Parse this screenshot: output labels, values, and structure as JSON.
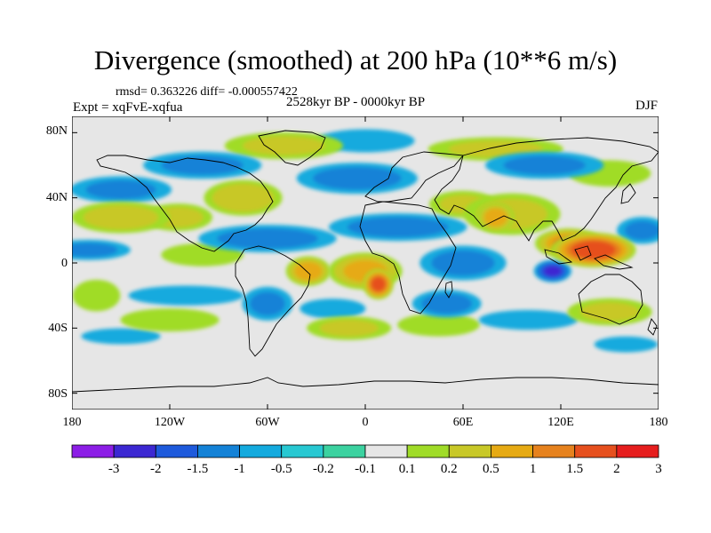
{
  "figure": {
    "title": "Divergence (smoothed) at 200 hPa (10**6 m/s)",
    "rmsd_text": "rmsd= 0.363226 diff= -0.000557422",
    "experiment": "Expt = xqFvE-xqfua",
    "period": "2528kyr BP - 0000kyr BP",
    "season": "DJF"
  },
  "map": {
    "lat_ticks": [
      "80N",
      "40N",
      "0",
      "40S",
      "80S"
    ],
    "lon_ticks": [
      "180",
      "120W",
      "60W",
      "0",
      "60E",
      "120E",
      "180"
    ],
    "background_color": "#e6e6e6"
  },
  "colorbar": {
    "labels": [
      "-3",
      "-2",
      "-1.5",
      "-1",
      "-0.5",
      "-0.2",
      "-0.1",
      "0.1",
      "0.2",
      "0.5",
      "1",
      "1.5",
      "2",
      "3"
    ],
    "colors": [
      "#8c1ee6",
      "#3c28d2",
      "#1e5adc",
      "#1482d7",
      "#14aade",
      "#28c8d2",
      "#3cd2a0",
      "#e6e6e6",
      "#a0dc28",
      "#c8c828",
      "#e6aa14",
      "#e6821e",
      "#e6501e",
      "#e61e1e"
    ]
  },
  "chart_data": {
    "type": "heatmap",
    "title": "Divergence (smoothed) at 200 hPa (10**6 m/s)",
    "units": "10**6 m/s",
    "projection": "cylindrical equidistant",
    "x_range": [
      -180,
      180
    ],
    "y_range": [
      -90,
      90
    ],
    "levels": [
      -3,
      -2,
      -1.5,
      -1,
      -0.5,
      -0.2,
      -0.1,
      0.1,
      0.2,
      0.5,
      1,
      1.5,
      2,
      3
    ],
    "features": [
      {
        "lon": 140,
        "lat": 8,
        "value": 2.5,
        "rx": 22,
        "ry": 9
      },
      {
        "lon": 125,
        "lat": 12,
        "value": 1.6,
        "rx": 18,
        "ry": 8
      },
      {
        "lon": 8,
        "lat": -13,
        "value": 2.2,
        "rx": 8,
        "ry": 8
      },
      {
        "lon": 0,
        "lat": -5,
        "value": 1.2,
        "rx": 20,
        "ry": 10
      },
      {
        "lon": -35,
        "lat": -5,
        "value": 1.3,
        "rx": 12,
        "ry": 8
      },
      {
        "lon": 80,
        "lat": 28,
        "value": 1.3,
        "rx": 10,
        "ry": 8
      },
      {
        "lon": 90,
        "lat": 30,
        "value": 0.6,
        "rx": 28,
        "ry": 12
      },
      {
        "lon": 60,
        "lat": 36,
        "value": 0.5,
        "rx": 20,
        "ry": 8
      },
      {
        "lon": -150,
        "lat": 28,
        "value": 0.7,
        "rx": 28,
        "ry": 9
      },
      {
        "lon": -115,
        "lat": 28,
        "value": 0.6,
        "rx": 20,
        "ry": 8
      },
      {
        "lon": -75,
        "lat": 40,
        "value": 0.8,
        "rx": 22,
        "ry": 10
      },
      {
        "lon": -50,
        "lat": 72,
        "value": 0.5,
        "rx": 35,
        "ry": 8
      },
      {
        "lon": 80,
        "lat": 70,
        "value": 0.5,
        "rx": 40,
        "ry": 7
      },
      {
        "lon": 150,
        "lat": 55,
        "value": 0.4,
        "rx": 25,
        "ry": 8
      },
      {
        "lon": -100,
        "lat": 5,
        "value": 0.4,
        "rx": 25,
        "ry": 7
      },
      {
        "lon": -10,
        "lat": -40,
        "value": 0.5,
        "rx": 25,
        "ry": 7
      },
      {
        "lon": 45,
        "lat": -38,
        "value": 0.4,
        "rx": 25,
        "ry": 7
      },
      {
        "lon": -120,
        "lat": -35,
        "value": 0.4,
        "rx": 30,
        "ry": 7
      },
      {
        "lon": 150,
        "lat": -30,
        "value": 0.5,
        "rx": 25,
        "ry": 8
      },
      {
        "lon": -165,
        "lat": -20,
        "value": 0.3,
        "rx": 15,
        "ry": 10
      },
      {
        "lon": 115,
        "lat": -5,
        "value": -1.6,
        "rx": 10,
        "ry": 6
      },
      {
        "lon": -60,
        "lat": 15,
        "value": -0.6,
        "rx": 40,
        "ry": 8
      },
      {
        "lon": 20,
        "lat": 22,
        "value": -0.6,
        "rx": 40,
        "ry": 8
      },
      {
        "lon": -170,
        "lat": 8,
        "value": -0.5,
        "rx": 25,
        "ry": 6
      },
      {
        "lon": 60,
        "lat": 0,
        "value": -0.6,
        "rx": 25,
        "ry": 10
      },
      {
        "lon": -5,
        "lat": 52,
        "value": -0.6,
        "rx": 35,
        "ry": 9
      },
      {
        "lon": -150,
        "lat": 45,
        "value": -0.5,
        "rx": 30,
        "ry": 8
      },
      {
        "lon": -100,
        "lat": 60,
        "value": -0.5,
        "rx": 35,
        "ry": 8
      },
      {
        "lon": 110,
        "lat": 60,
        "value": -0.5,
        "rx": 35,
        "ry": 8
      },
      {
        "lon": -60,
        "lat": -25,
        "value": -0.5,
        "rx": 15,
        "ry": 10
      },
      {
        "lon": 50,
        "lat": -25,
        "value": -0.6,
        "rx": 20,
        "ry": 8
      },
      {
        "lon": -110,
        "lat": -20,
        "value": -0.4,
        "rx": 35,
        "ry": 6
      },
      {
        "lon": -20,
        "lat": -28,
        "value": -0.4,
        "rx": 20,
        "ry": 6
      },
      {
        "lon": 100,
        "lat": -35,
        "value": -0.4,
        "rx": 30,
        "ry": 6
      },
      {
        "lon": -150,
        "lat": -45,
        "value": -0.3,
        "rx": 25,
        "ry": 5
      },
      {
        "lon": 160,
        "lat": -50,
        "value": -0.3,
        "rx": 20,
        "ry": 5
      },
      {
        "lon": 0,
        "lat": 75,
        "value": -0.4,
        "rx": 30,
        "ry": 7
      },
      {
        "lon": 170,
        "lat": 20,
        "value": -0.5,
        "rx": 15,
        "ry": 8
      }
    ]
  }
}
